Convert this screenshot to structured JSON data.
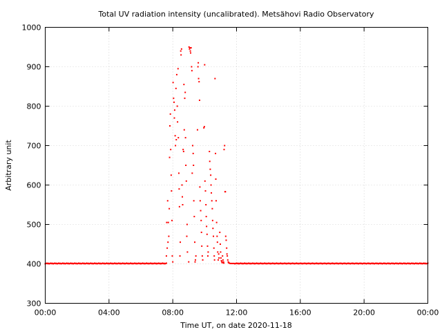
{
  "chart_data": {
    "type": "scatter",
    "title": "Total UV radiation intensity (uncalibrated). Metsähovi Radio Observatory",
    "xlabel": "Time UT, on date 2020-11-18",
    "ylabel": "Arbitrary unit",
    "xlim": [
      "00:00",
      "24:00"
    ],
    "ylim": [
      300,
      1000
    ],
    "x_ticks": [
      "00:00",
      "04:00",
      "08:00",
      "12:00",
      "16:00",
      "20:00",
      "00:00"
    ],
    "y_ticks": [
      "300",
      "400",
      "500",
      "600",
      "700",
      "800",
      "900",
      "1000"
    ],
    "grid": true,
    "legend": "none",
    "marker_color": "#ff0000",
    "series": [
      {
        "x_unit": "hours UT",
        "baseline": {
          "y": 401,
          "spans": [
            [
              0.0,
              7.6
            ],
            [
              11.9,
              24.0
            ]
          ],
          "step_hours": 0.05
        },
        "points": [
          [
            7.6,
            420
          ],
          [
            7.62,
            505
          ],
          [
            7.65,
            440
          ],
          [
            7.68,
            560
          ],
          [
            7.7,
            455
          ],
          [
            7.72,
            505
          ],
          [
            7.75,
            470
          ],
          [
            7.78,
            540
          ],
          [
            7.8,
            670
          ],
          [
            7.82,
            750
          ],
          [
            7.85,
            780
          ],
          [
            7.87,
            690
          ],
          [
            7.9,
            625
          ],
          [
            7.92,
            585
          ],
          [
            7.95,
            510
          ],
          [
            7.97,
            420
          ],
          [
            8.0,
            405
          ],
          [
            8.02,
            860
          ],
          [
            8.05,
            820
          ],
          [
            8.08,
            810
          ],
          [
            8.1,
            770
          ],
          [
            8.12,
            790
          ],
          [
            8.15,
            725
          ],
          [
            8.17,
            700
          ],
          [
            8.2,
            845
          ],
          [
            8.22,
            715
          ],
          [
            8.25,
            880
          ],
          [
            8.28,
            800
          ],
          [
            8.3,
            760
          ],
          [
            8.33,
            895
          ],
          [
            8.35,
            720
          ],
          [
            8.38,
            630
          ],
          [
            8.4,
            590
          ],
          [
            8.42,
            545
          ],
          [
            8.45,
            420
          ],
          [
            8.47,
            455
          ],
          [
            8.5,
            940
          ],
          [
            8.52,
            930
          ],
          [
            8.55,
            945
          ],
          [
            8.58,
            600
          ],
          [
            8.6,
            570
          ],
          [
            8.62,
            550
          ],
          [
            8.65,
            690
          ],
          [
            8.68,
            685
          ],
          [
            8.7,
            855
          ],
          [
            8.72,
            740
          ],
          [
            8.75,
            820
          ],
          [
            8.78,
            835
          ],
          [
            8.8,
            720
          ],
          [
            8.82,
            650
          ],
          [
            8.85,
            610
          ],
          [
            8.88,
            470
          ],
          [
            8.9,
            500
          ],
          [
            8.92,
            430
          ],
          [
            9.0,
            405
          ],
          [
            9.02,
            950
          ],
          [
            9.05,
            945
          ],
          [
            9.08,
            948
          ],
          [
            9.1,
            940
          ],
          [
            9.12,
            935
          ],
          [
            9.15,
            948
          ],
          [
            9.18,
            900
          ],
          [
            9.2,
            890
          ],
          [
            9.22,
            630
          ],
          [
            9.25,
            700
          ],
          [
            9.28,
            680
          ],
          [
            9.3,
            650
          ],
          [
            9.32,
            560
          ],
          [
            9.35,
            520
          ],
          [
            9.38,
            455
          ],
          [
            9.4,
            405
          ],
          [
            9.42,
            410
          ],
          [
            9.45,
            420
          ],
          [
            9.55,
            740
          ],
          [
            9.58,
            900
          ],
          [
            9.6,
            910
          ],
          [
            9.62,
            870
          ],
          [
            9.65,
            862
          ],
          [
            9.68,
            815
          ],
          [
            9.7,
            595
          ],
          [
            9.72,
            560
          ],
          [
            9.75,
            535
          ],
          [
            9.78,
            510
          ],
          [
            9.8,
            480
          ],
          [
            9.82,
            445
          ],
          [
            9.85,
            420
          ],
          [
            9.88,
            410
          ],
          [
            9.95,
            745
          ],
          [
            9.98,
            748
          ],
          [
            10.0,
            905
          ],
          [
            10.02,
            610
          ],
          [
            10.05,
            585
          ],
          [
            10.08,
            550
          ],
          [
            10.1,
            520
          ],
          [
            10.12,
            495
          ],
          [
            10.15,
            475
          ],
          [
            10.18,
            445
          ],
          [
            10.2,
            420
          ],
          [
            10.22,
            430
          ],
          [
            10.3,
            685
          ],
          [
            10.32,
            660
          ],
          [
            10.35,
            640
          ],
          [
            10.38,
            625
          ],
          [
            10.4,
            600
          ],
          [
            10.42,
            580
          ],
          [
            10.45,
            560
          ],
          [
            10.48,
            540
          ],
          [
            10.5,
            510
          ],
          [
            10.52,
            490
          ],
          [
            10.55,
            470
          ],
          [
            10.58,
            440
          ],
          [
            10.6,
            420
          ],
          [
            10.62,
            410
          ],
          [
            10.65,
            870
          ],
          [
            10.68,
            680
          ],
          [
            10.7,
            615
          ],
          [
            10.72,
            560
          ],
          [
            10.75,
            505
          ],
          [
            10.78,
            470
          ],
          [
            10.8,
            455
          ],
          [
            10.82,
            430
          ],
          [
            10.85,
            410
          ],
          [
            10.88,
            425
          ],
          [
            10.9,
            415
          ],
          [
            10.95,
            480
          ],
          [
            10.98,
            450
          ],
          [
            11.0,
            430
          ],
          [
            11.02,
            415
          ],
          [
            11.05,
            408
          ],
          [
            11.08,
            405
          ],
          [
            11.1,
            403
          ],
          [
            11.12,
            420
          ],
          [
            11.15,
            410
          ],
          [
            11.18,
            405
          ],
          [
            11.2,
            402
          ],
          [
            11.22,
            690
          ],
          [
            11.25,
            700
          ],
          [
            11.28,
            583
          ],
          [
            11.3,
            583
          ],
          [
            11.32,
            470
          ],
          [
            11.35,
            460
          ],
          [
            11.38,
            440
          ],
          [
            11.4,
            425
          ],
          [
            11.42,
            420
          ],
          [
            11.45,
            410
          ],
          [
            11.48,
            405
          ],
          [
            11.5,
            403
          ],
          [
            11.55,
            402
          ],
          [
            11.6,
            401
          ],
          [
            11.65,
            401
          ],
          [
            11.7,
            401
          ],
          [
            11.75,
            401
          ],
          [
            11.8,
            401
          ],
          [
            11.85,
            401
          ]
        ]
      }
    ]
  }
}
